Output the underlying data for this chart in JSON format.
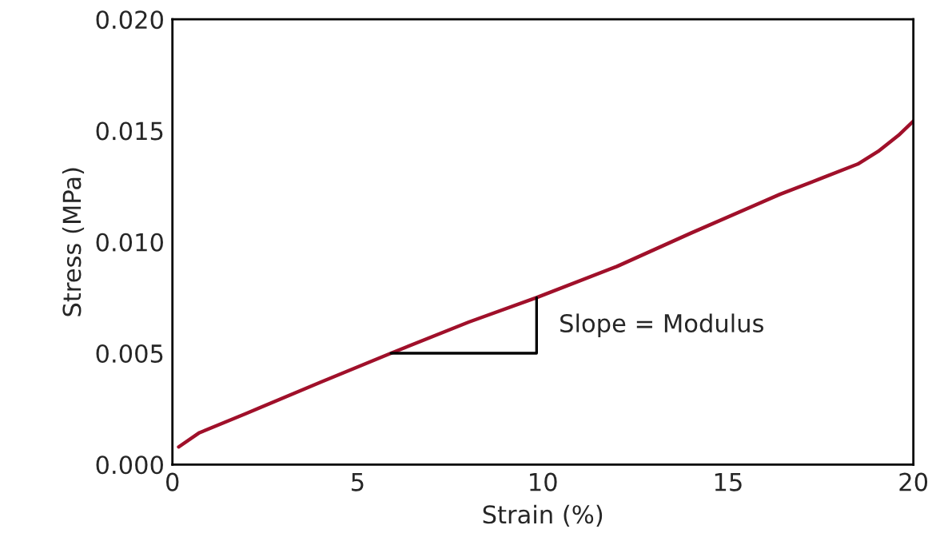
{
  "chart_data": {
    "type": "line",
    "xlabel": "Strain (%)",
    "ylabel": "Stress (MPa)",
    "x": [
      0.17,
      0.73,
      2,
      4,
      5.9,
      8,
      9.83,
      12,
      14,
      16.4,
      17.5,
      18.5,
      19.05,
      19.6,
      20
    ],
    "series": [
      {
        "color": "#a0102a",
        "values": [
          0.00079,
          0.00143,
          0.0023,
          0.0037,
          0.005,
          0.0064,
          0.0075,
          0.0089,
          0.0104,
          0.01214,
          0.01285,
          0.0135,
          0.01407,
          0.01479,
          0.01543
        ]
      }
    ],
    "xlim": [
      0,
      20
    ],
    "xticks": [
      0,
      5,
      10,
      15,
      20
    ],
    "ylim": [
      0,
      0.02
    ],
    "yticks": [
      {
        "value": 0,
        "label": "0.000"
      },
      {
        "value": 0.005,
        "label": "0.005"
      },
      {
        "value": 0.01,
        "label": "0.010"
      },
      {
        "value": 0.015,
        "label": "0.015"
      },
      {
        "value": 0.02,
        "label": "0.020"
      }
    ],
    "grid": false,
    "legend": false,
    "annotations": [
      {
        "text": "Slope = Modulus",
        "x": 9.83,
        "y": 0.0075
      }
    ]
  }
}
